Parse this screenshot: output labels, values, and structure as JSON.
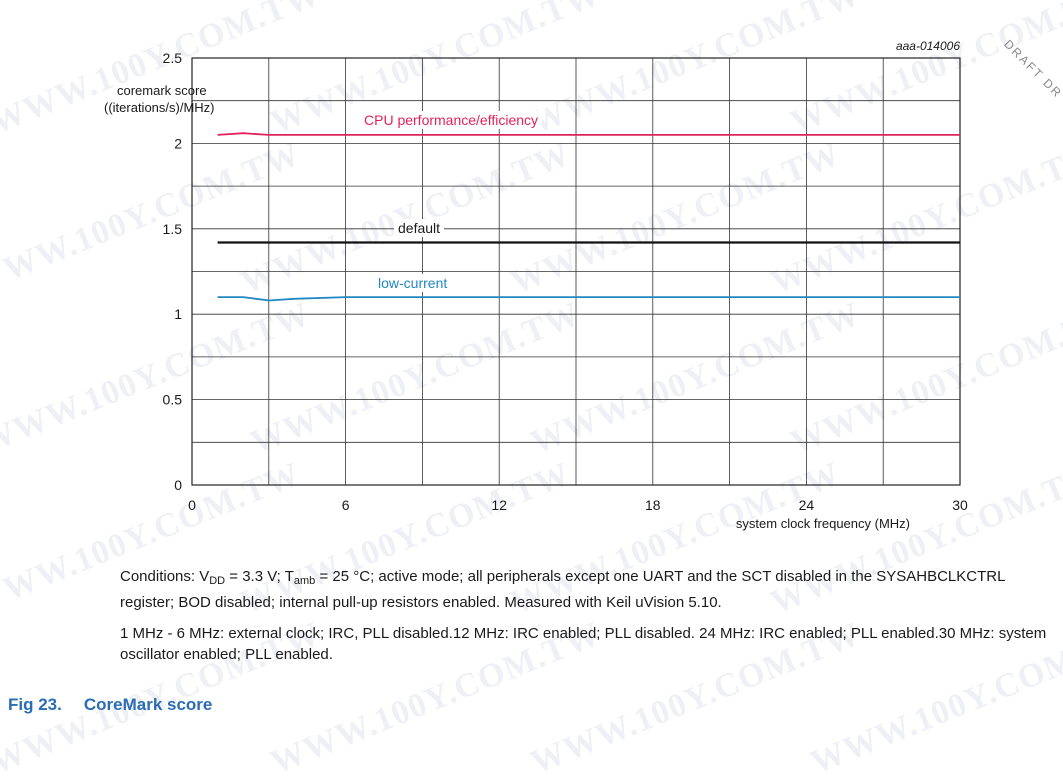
{
  "watermark_text": "WWW.100Y.COM.TW",
  "draft_text": "DRAFT DR",
  "chart_data": {
    "type": "line",
    "figure_id": "aaa-014006",
    "ylabel_line1": "coremark score",
    "ylabel_line2": "((iterations/s)/MHz)",
    "xlabel": "system clock frequency (MHz)",
    "xlim": [
      0,
      30
    ],
    "ylim": [
      0,
      2.5
    ],
    "xticks": [
      0,
      6,
      12,
      18,
      24,
      30
    ],
    "yticks": [
      0,
      0.5,
      1,
      1.5,
      2,
      2.5
    ],
    "xtick_labels": [
      "0",
      "6",
      "12",
      "18",
      "24",
      "30"
    ],
    "ytick_labels": [
      "0",
      "0.5",
      "1",
      "1.5",
      "2",
      "2.5"
    ],
    "grid": true,
    "series": [
      {
        "name": "CPU performance/efficiency",
        "color": "#e0225a",
        "x": [
          1,
          2,
          3,
          4,
          6,
          12,
          24,
          30
        ],
        "y": [
          2.05,
          2.06,
          2.05,
          2.05,
          2.05,
          2.05,
          2.05,
          2.05
        ]
      },
      {
        "name": "default",
        "color": "#111111",
        "x": [
          1,
          2,
          3,
          4,
          6,
          12,
          24,
          30
        ],
        "y": [
          1.42,
          1.42,
          1.42,
          1.42,
          1.42,
          1.42,
          1.42,
          1.42
        ]
      },
      {
        "name": "low-current",
        "color": "#2188c4",
        "x": [
          1,
          2,
          2.5,
          3,
          4,
          6,
          12,
          24,
          30
        ],
        "y": [
          1.1,
          1.1,
          1.09,
          1.08,
          1.09,
          1.1,
          1.1,
          1.1,
          1.1
        ]
      }
    ]
  },
  "notes": {
    "conditions_a": "Conditions: V",
    "conditions_sub1": "DD",
    "conditions_b": " = 3.3 V; T",
    "conditions_sub2": "amb",
    "conditions_c": " = 25 °C; active mode; all peripherals except one UART and the SCT disabled in the SYSAHBCLKCTRL register; BOD disabled; internal pull-up resistors enabled. Measured with Keil uVision 5.10.",
    "clock_note": "1 MHz - 6 MHz: external clock; IRC, PLL disabled.12 MHz: IRC enabled; PLL disabled. 24 MHz: IRC enabled; PLL enabled.30 MHz: system oscillator enabled; PLL enabled."
  },
  "caption": {
    "number": "Fig 23.",
    "title": "CoreMark score"
  }
}
